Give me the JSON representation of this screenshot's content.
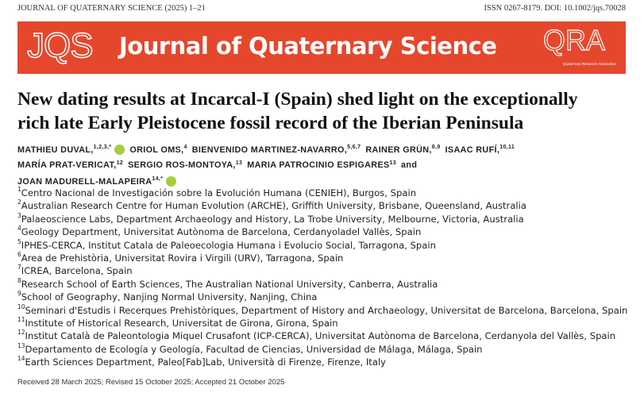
{
  "header": {
    "journal_line": "JOURNAL OF QUATERNARY SCIENCE (2025) 1–21",
    "issn_doi": "ISSN 0267-8179. DOI: 10.1002/jqs.70028"
  },
  "banner": {
    "logo": "JQS",
    "title": "Journal of Quaternary Science",
    "qra": "QRA",
    "qra_subtitle": "Quaternary Research Association"
  },
  "article": {
    "title_lines": [
      "New dating results at Incarcal-I (Spain) shed light on the exceptionally",
      "rich late Early Pleistocene fossil record of the Iberian Peninsula"
    ],
    "author_lines": [
      [
        {
          "name": "MATHIEU DUVAL,",
          "sup": "1,2,3,*",
          "orcid": true
        },
        {
          "name": "ORIOL OMS,",
          "sup": "4"
        },
        {
          "name": "BIENVENIDO MARTINEZ-NAVARRO,",
          "sup": "5,6,7"
        },
        {
          "name": "RAINER GRÜN,",
          "sup": "8,9"
        },
        {
          "name": "ISAAC RUFÍ,",
          "sup": "10,11"
        }
      ],
      [
        {
          "name": "MARÍA PRAT-VERICAT,",
          "sup": "12"
        },
        {
          "name": "SERGIO ROS-MONTOYA,",
          "sup": "13"
        },
        {
          "name": "MARIA PATROCINIO ESPIGARES",
          "sup": "13"
        },
        {
          "name": "and"
        }
      ],
      [
        {
          "name": "JOAN MADURELL-MALAPEIRA",
          "sup": "14,*",
          "orcid": true
        }
      ]
    ],
    "affiliations": [
      {
        "num": "1",
        "text": "Centro Nacional de Investigación sobre la Evolución Humana (CENIEH), Burgos, Spain"
      },
      {
        "num": "2",
        "text": "Australian Research Centre for Human Evolution (ARCHE), Griffith University, Brisbane, Queensland, Australia"
      },
      {
        "num": "3",
        "text": "Palaeoscience Labs, Department Archaeology and History, La Trobe University, Melbourne, Victoria, Australia"
      },
      {
        "num": "4",
        "text": "Geology Department, Universitat Autònoma de Barcelona, Cerdanyoladel Vallès, Spain"
      },
      {
        "num": "5",
        "text": "IPHES-CERCA, Institut Catala de Paleoecologia Humana i Evolucio Social, Tarragona, Spain"
      },
      {
        "num": "6",
        "text": "Area de Prehistòria, Universitat Rovira i Virgili (URV), Tarragona, Spain"
      },
      {
        "num": "7",
        "text": "ICREA, Barcelona, Spain"
      },
      {
        "num": "8",
        "text": "Research School of Earth Sciences, The Australian National University, Canberra, Australia"
      },
      {
        "num": "9",
        "text": "School of Geography, Nanjing Normal University, Nanjing, China"
      },
      {
        "num": "10",
        "text": "Seminari d'Estudis i Recerques Prehistòriques, Department of History and Archaeology, Universitat de Barcelona, Barcelona, Spain"
      },
      {
        "num": "11",
        "text": "Institute of Historical Research, Universitat de Girona, Girona, Spain"
      },
      {
        "num": "12",
        "text": "Institut Català de Paleontologia Miquel Crusafont (ICP-CERCA), Universitat Autònoma de Barcelona, Cerdanyola del Vallès, Spain"
      },
      {
        "num": "13",
        "text": "Departamento de Ecología y Geología, Facultad de Ciencias, Universidad de Málaga, Málaga, Spain"
      },
      {
        "num": "14",
        "text": "Earth Sciences Department, Paleo[Fab]Lab, Università di Firenze, Firenze, Italy"
      }
    ],
    "received": "Received 28 March 2025; Revised 15 October 2025; Accepted 21 October 2025"
  }
}
